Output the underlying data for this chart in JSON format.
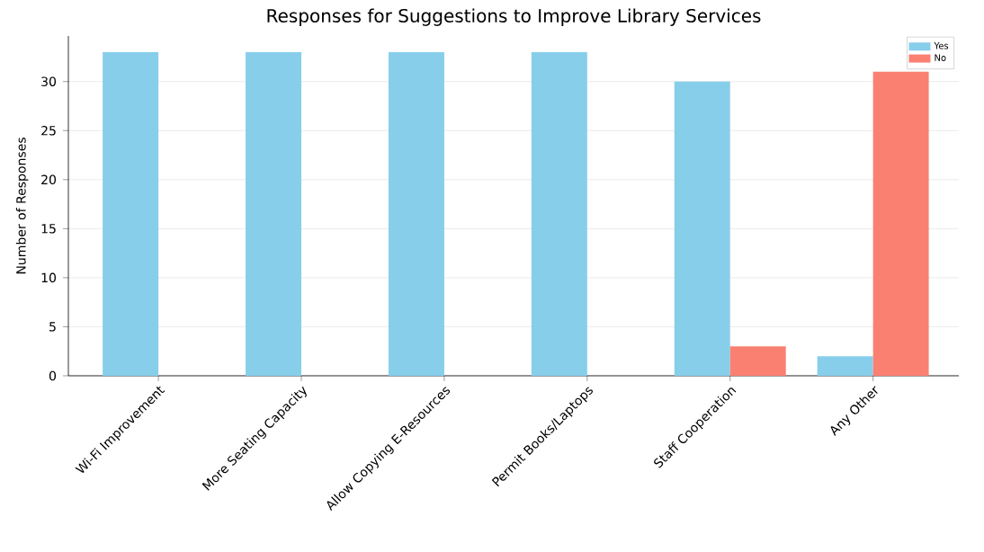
{
  "chart_data": {
    "type": "bar",
    "title": "Responses for Suggestions to Improve Library Services",
    "ylabel": "Number of Responses",
    "categories": [
      "Wi-Fi Improvement",
      "More Seating Capacity",
      "Allow Copying E-Resources",
      "Permit Books/Laptops",
      "Staff Cooperation",
      "Any Other"
    ],
    "series": [
      {
        "name": "Yes",
        "color": "#87ceeb",
        "values": [
          33,
          33,
          33,
          33,
          30,
          2
        ]
      },
      {
        "name": "No",
        "color": "#fa8072",
        "values": [
          0,
          0,
          0,
          0,
          3,
          31
        ]
      }
    ],
    "ylim": [
      0,
      34.65
    ],
    "yticks": [
      0,
      5,
      10,
      15,
      20,
      25,
      30
    ],
    "grid": "y",
    "legend": "top right"
  }
}
